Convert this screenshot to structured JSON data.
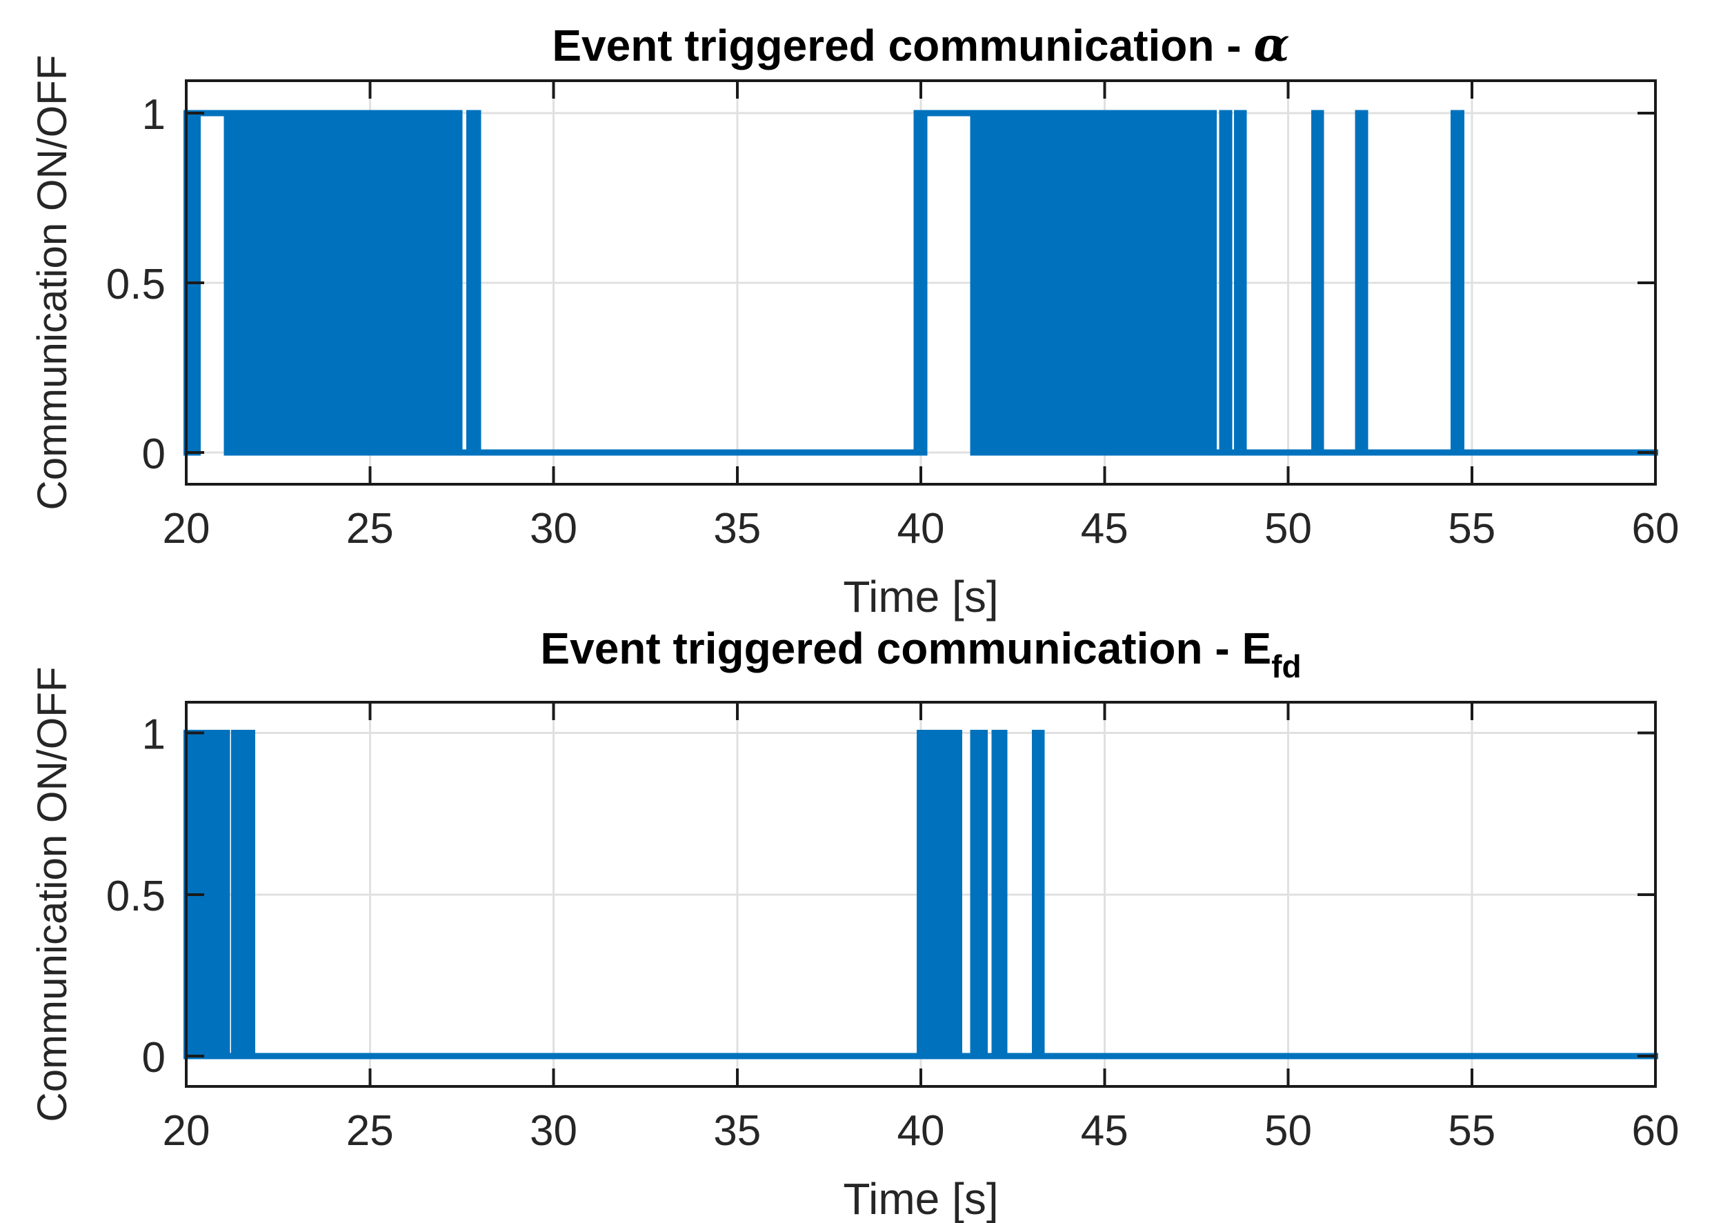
{
  "figure": {
    "background": "#ffffff",
    "accent_color": "#0072bd",
    "axis_color": "#1a1a1a",
    "grid_color": "#e0e0e0",
    "tick_label_color": "#262626",
    "title_color": "#000000"
  },
  "chart_data": [
    {
      "type": "line",
      "title_prefix": "Event triggered communication - ",
      "title_symbol": "α",
      "title_symbol_style": "greek-italic",
      "title_subscript": "",
      "xlabel": "Time [s]",
      "ylabel": "Communication ON/OFF",
      "xlim": [
        20,
        60
      ],
      "ylim": [
        -0.08,
        1.08
      ],
      "xticks": [
        20,
        25,
        30,
        35,
        40,
        45,
        50,
        55,
        60
      ],
      "xtick_labels": [
        "20",
        "25",
        "30",
        "35",
        "40",
        "45",
        "50",
        "55",
        "60"
      ],
      "yticks": [
        0,
        0.5,
        1
      ],
      "ytick_labels": [
        "0",
        "0.5",
        "1"
      ],
      "grid": true,
      "legend": "none",
      "line_color": "#0072bd",
      "segment_states": {
        "low": "signal at 0",
        "high": "signal at 1",
        "fill": "rapid ON/OFF switching between 0 and 1"
      },
      "segments": [
        [
          "fill",
          20.0,
          20.32
        ],
        [
          "high",
          20.32,
          21.1
        ],
        [
          "fill",
          21.1,
          27.45
        ],
        [
          "low",
          27.45,
          27.7
        ],
        [
          "fill",
          27.7,
          27.95
        ],
        [
          "low",
          27.95,
          39.88
        ],
        [
          "fill",
          39.88,
          40.1
        ],
        [
          "high",
          40.1,
          41.42
        ],
        [
          "fill",
          41.42,
          43.68
        ],
        [
          "high",
          43.68,
          43.8
        ],
        [
          "fill",
          43.8,
          47.98
        ],
        [
          "low",
          47.98,
          48.2
        ],
        [
          "fill",
          48.2,
          48.4
        ],
        [
          "low",
          48.4,
          48.6
        ],
        [
          "fill",
          48.6,
          48.8
        ],
        [
          "low",
          48.8,
          50.7
        ],
        [
          "fill",
          50.7,
          50.9
        ],
        [
          "low",
          50.9,
          51.9
        ],
        [
          "fill",
          51.9,
          52.1
        ],
        [
          "low",
          52.1,
          54.5
        ],
        [
          "fill",
          54.5,
          54.72
        ],
        [
          "low",
          54.72,
          60.0
        ]
      ]
    },
    {
      "type": "line",
      "title_prefix": "Event triggered communication - ",
      "title_symbol": "E",
      "title_symbol_style": "bold",
      "title_subscript": "fd",
      "xlabel": "Time [s]",
      "ylabel": "Communication ON/OFF",
      "xlim": [
        20,
        60
      ],
      "ylim": [
        -0.08,
        1.08
      ],
      "xticks": [
        20,
        25,
        30,
        35,
        40,
        45,
        50,
        55,
        60
      ],
      "xtick_labels": [
        "20",
        "25",
        "30",
        "35",
        "40",
        "45",
        "50",
        "55",
        "60"
      ],
      "yticks": [
        0,
        0.5,
        1
      ],
      "ytick_labels": [
        "0",
        "0.5",
        "1"
      ],
      "grid": true,
      "legend": "none",
      "line_color": "#0072bd",
      "segment_states": {
        "low": "signal at 0",
        "high": "signal at 1",
        "fill": "rapid ON/OFF switching between 0 and 1"
      },
      "segments": [
        [
          "fill",
          20.0,
          20.68
        ],
        [
          "low",
          20.68,
          20.78
        ],
        [
          "fill",
          20.78,
          21.12
        ],
        [
          "low",
          21.12,
          21.3
        ],
        [
          "fill",
          21.3,
          21.52
        ],
        [
          "low",
          21.52,
          21.6
        ],
        [
          "fill",
          21.6,
          21.8
        ],
        [
          "low",
          21.8,
          39.96
        ],
        [
          "fill",
          39.96,
          41.05
        ],
        [
          "low",
          41.05,
          41.42
        ],
        [
          "fill",
          41.42,
          41.75
        ],
        [
          "low",
          41.75,
          42.0
        ],
        [
          "fill",
          42.0,
          42.28
        ],
        [
          "low",
          42.28,
          43.1
        ],
        [
          "fill",
          43.1,
          43.3
        ],
        [
          "low",
          43.3,
          60.0
        ]
      ]
    }
  ]
}
